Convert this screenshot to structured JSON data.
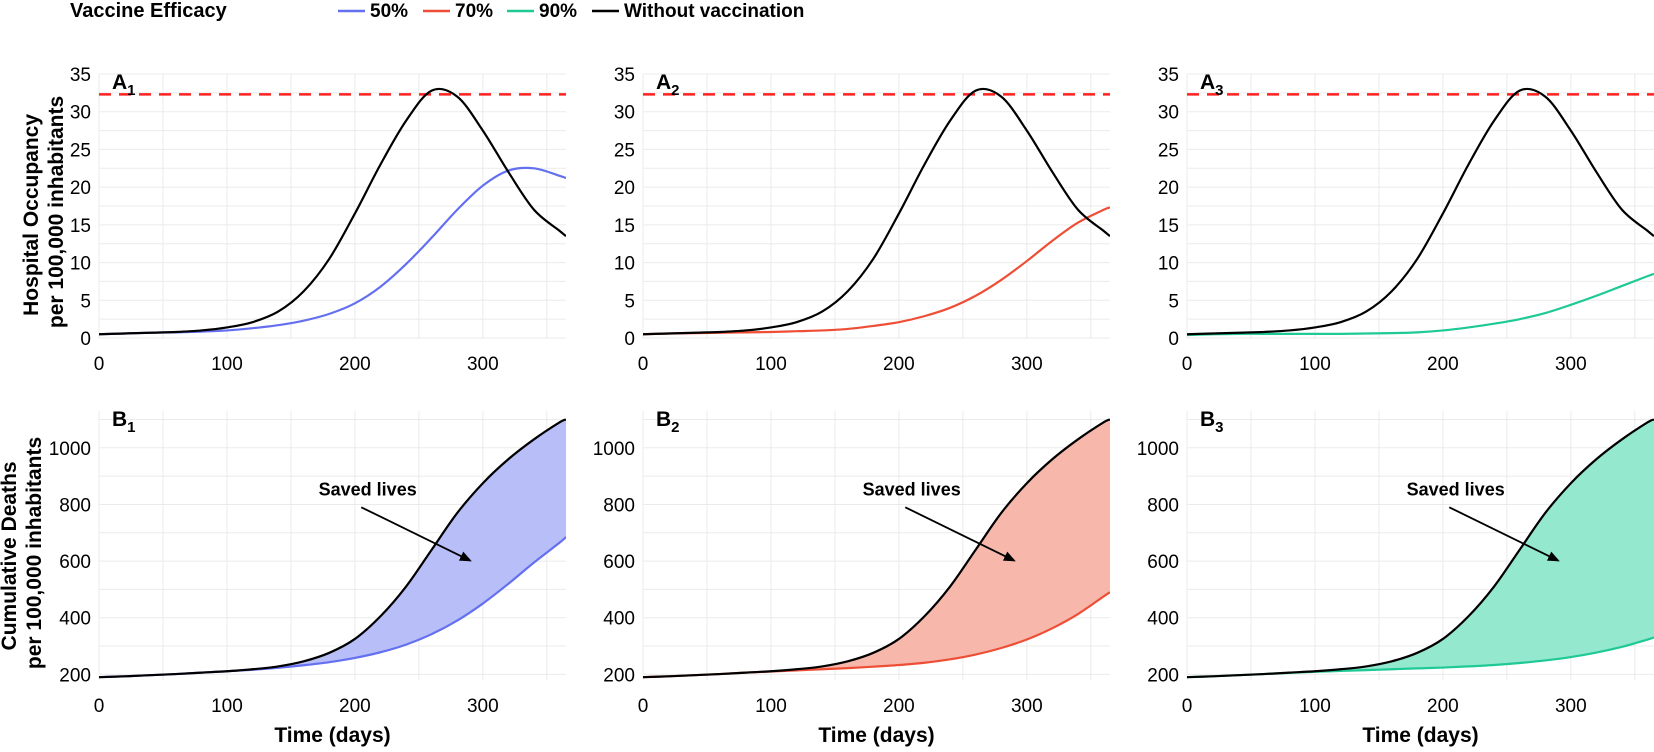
{
  "legend": {
    "title": "Vaccine Efficacy",
    "entries": [
      {
        "label": "50%",
        "color": "#6470f0"
      },
      {
        "label": "70%",
        "color": "#ee4e35"
      },
      {
        "label": "90%",
        "color": "#1ec995"
      },
      {
        "label": "Without vaccination",
        "color": "#000000"
      }
    ]
  },
  "colors": {
    "threshold": "#ff2020",
    "fill_50": "#b8bef8",
    "fill_70": "#f7b8ab",
    "fill_90": "#94e8cd",
    "grid": "#ebebeb"
  },
  "chart_data": [
    {
      "type": "line",
      "panel": "A",
      "sub": "1",
      "ylabel": "Hospital Occupancy\nper 100,000 inhabitants",
      "xlabel": "",
      "xlim": [
        0,
        365
      ],
      "ylim": [
        0,
        35
      ],
      "xticks": [
        0,
        100,
        200,
        300
      ],
      "yticks": [
        0,
        5,
        10,
        15,
        20,
        25,
        30,
        35
      ],
      "threshold": 32.3,
      "x": [
        0,
        20,
        40,
        60,
        80,
        100,
        120,
        140,
        160,
        180,
        200,
        220,
        240,
        260,
        280,
        300,
        320,
        340,
        360,
        365
      ],
      "series": [
        {
          "name": "50%",
          "color": "#6470f0",
          "values": [
            0.5,
            0.6,
            0.7,
            0.75,
            0.85,
            1.0,
            1.3,
            1.7,
            2.3,
            3.2,
            4.6,
            6.8,
            9.8,
            13.3,
            17.0,
            20.2,
            22.2,
            22.5,
            21.5,
            21.2
          ]
        },
        {
          "name": "Without vaccination",
          "color": "#000000",
          "values": [
            0.5,
            0.6,
            0.7,
            0.8,
            1.0,
            1.4,
            2.1,
            3.5,
            6.2,
            10.5,
            16.5,
            23.0,
            28.8,
            32.8,
            32.0,
            27.5,
            22.0,
            17.0,
            14.2,
            13.5
          ]
        }
      ]
    },
    {
      "type": "line",
      "panel": "A",
      "sub": "2",
      "ylabel": "",
      "xlabel": "",
      "xlim": [
        0,
        365
      ],
      "ylim": [
        0,
        35
      ],
      "xticks": [
        0,
        100,
        200,
        300
      ],
      "yticks": [
        0,
        5,
        10,
        15,
        20,
        25,
        30,
        35
      ],
      "threshold": 32.3,
      "x": [
        0,
        20,
        40,
        60,
        80,
        100,
        120,
        140,
        160,
        180,
        200,
        220,
        240,
        260,
        280,
        300,
        320,
        340,
        360,
        365
      ],
      "series": [
        {
          "name": "70%",
          "color": "#ee4e35",
          "values": [
            0.5,
            0.6,
            0.65,
            0.7,
            0.75,
            0.8,
            0.9,
            1.0,
            1.2,
            1.6,
            2.1,
            2.9,
            4.0,
            5.6,
            7.7,
            10.2,
            12.9,
            15.3,
            17.0,
            17.3
          ]
        },
        {
          "name": "Without vaccination",
          "color": "#000000",
          "values": [
            0.5,
            0.6,
            0.7,
            0.8,
            1.0,
            1.4,
            2.1,
            3.5,
            6.2,
            10.5,
            16.5,
            23.0,
            28.8,
            32.8,
            32.0,
            27.5,
            22.0,
            17.0,
            14.2,
            13.5
          ]
        }
      ]
    },
    {
      "type": "line",
      "panel": "A",
      "sub": "3",
      "ylabel": "",
      "xlabel": "",
      "xlim": [
        0,
        365
      ],
      "ylim": [
        0,
        35
      ],
      "xticks": [
        0,
        100,
        200,
        300
      ],
      "yticks": [
        0,
        5,
        10,
        15,
        20,
        25,
        30,
        35
      ],
      "threshold": 32.3,
      "x": [
        0,
        20,
        40,
        60,
        80,
        100,
        120,
        140,
        160,
        180,
        200,
        220,
        240,
        260,
        280,
        300,
        320,
        340,
        360,
        365
      ],
      "series": [
        {
          "name": "90%",
          "color": "#1ec995",
          "values": [
            0.4,
            0.5,
            0.55,
            0.55,
            0.55,
            0.55,
            0.55,
            0.6,
            0.65,
            0.75,
            1.0,
            1.4,
            1.9,
            2.5,
            3.3,
            4.4,
            5.6,
            6.9,
            8.2,
            8.5
          ]
        },
        {
          "name": "Without vaccination",
          "color": "#000000",
          "values": [
            0.5,
            0.6,
            0.7,
            0.8,
            1.0,
            1.4,
            2.1,
            3.5,
            6.2,
            10.5,
            16.5,
            23.0,
            28.8,
            32.8,
            32.0,
            27.5,
            22.0,
            17.0,
            14.2,
            13.5
          ]
        }
      ]
    },
    {
      "type": "area",
      "panel": "B",
      "sub": "1",
      "ylabel": "Cumulative Deaths\nper 100,000 inhabitants",
      "xlabel": "Time (days)",
      "xlim": [
        0,
        365
      ],
      "ylim": [
        180,
        1130
      ],
      "xticks": [
        0,
        100,
        200,
        300
      ],
      "yticks": [
        200,
        400,
        600,
        800,
        1000
      ],
      "annotation": "Saved lives",
      "fill_color": "#b8bef8",
      "x": [
        0,
        20,
        40,
        60,
        80,
        100,
        120,
        140,
        160,
        180,
        200,
        220,
        240,
        260,
        280,
        300,
        320,
        340,
        360,
        365
      ],
      "series": [
        {
          "name": "50%",
          "color": "#6470f0",
          "values": [
            190,
            193,
            197,
            201,
            206,
            211,
            216,
            223,
            232,
            243,
            258,
            278,
            305,
            342,
            390,
            450,
            520,
            595,
            665,
            685
          ]
        },
        {
          "name": "Without vaccination",
          "color": "#000000",
          "values": [
            190,
            193,
            197,
            201,
            206,
            211,
            218,
            228,
            246,
            276,
            325,
            405,
            510,
            640,
            770,
            875,
            960,
            1030,
            1090,
            1100
          ]
        }
      ]
    },
    {
      "type": "area",
      "panel": "B",
      "sub": "2",
      "ylabel": "",
      "xlabel": "Time (days)",
      "xlim": [
        0,
        365
      ],
      "ylim": [
        180,
        1130
      ],
      "xticks": [
        0,
        100,
        200,
        300
      ],
      "yticks": [
        200,
        400,
        600,
        800,
        1000
      ],
      "annotation": "Saved lives",
      "fill_color": "#f7b8ab",
      "x": [
        0,
        20,
        40,
        60,
        80,
        100,
        120,
        140,
        160,
        180,
        200,
        220,
        240,
        260,
        280,
        300,
        320,
        340,
        360,
        365
      ],
      "series": [
        {
          "name": "70%",
          "color": "#ee4e35",
          "values": [
            190,
            193,
            197,
            201,
            206,
            210,
            214,
            218,
            222,
            227,
            233,
            241,
            253,
            270,
            293,
            323,
            363,
            413,
            475,
            490
          ]
        },
        {
          "name": "Without vaccination",
          "color": "#000000",
          "values": [
            190,
            193,
            197,
            201,
            206,
            211,
            218,
            228,
            246,
            276,
            325,
            405,
            510,
            640,
            770,
            875,
            960,
            1030,
            1090,
            1100
          ]
        }
      ]
    },
    {
      "type": "area",
      "panel": "B",
      "sub": "3",
      "ylabel": "",
      "xlabel": "Time (days)",
      "xlim": [
        0,
        365
      ],
      "ylim": [
        180,
        1130
      ],
      "xticks": [
        0,
        100,
        200,
        300
      ],
      "yticks": [
        200,
        400,
        600,
        800,
        1000
      ],
      "annotation": "Saved lives",
      "fill_color": "#94e8cd",
      "x": [
        0,
        20,
        40,
        60,
        80,
        100,
        120,
        140,
        160,
        180,
        200,
        220,
        240,
        260,
        280,
        300,
        320,
        340,
        360,
        365
      ],
      "series": [
        {
          "name": "90%",
          "color": "#1ec995",
          "values": [
            190,
            193,
            197,
            201,
            205,
            209,
            212,
            215,
            218,
            221,
            224,
            228,
            233,
            240,
            249,
            261,
            277,
            297,
            323,
            330
          ]
        },
        {
          "name": "Without vaccination",
          "color": "#000000",
          "values": [
            190,
            193,
            197,
            201,
            206,
            211,
            218,
            228,
            246,
            276,
            325,
            405,
            510,
            640,
            770,
            875,
            960,
            1030,
            1090,
            1100
          ]
        }
      ]
    }
  ]
}
